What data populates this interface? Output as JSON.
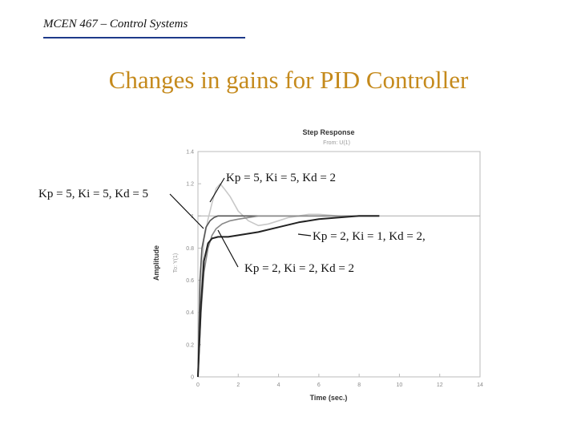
{
  "header": {
    "course": "MCEN 467 – Control Systems"
  },
  "slide": {
    "title": "Changes in gains for PID Controller"
  },
  "chart_data": {
    "type": "line",
    "title": "Step Response",
    "subtitle": "From: U(1)",
    "xlabel": "Time (sec.)",
    "ylabel": "Amplitude",
    "ylabel2": "To: Y(1)",
    "xlim": [
      0,
      14
    ],
    "ylim": [
      0,
      1.4
    ],
    "x_ticks": [
      "0",
      "2",
      "4",
      "6",
      "8",
      "10",
      "12",
      "14"
    ],
    "y_ticks": [
      "0",
      "0.2",
      "0.4",
      "0.6",
      "0.8",
      "1",
      "1.2",
      "1.4"
    ],
    "reference_value": 1.0,
    "series": [
      {
        "name": "Kp = 5, Ki = 5, Kd = 2",
        "color": "#c8c8c8",
        "x": [
          0,
          0.15,
          0.3,
          0.5,
          0.7,
          0.9,
          1.1,
          1.3,
          1.6,
          2.0,
          2.5,
          3.0,
          3.5,
          4.0,
          4.5,
          5.0,
          5.5,
          6.0,
          7.0,
          8.0,
          9.0
        ],
        "y": [
          0,
          0.55,
          0.85,
          0.98,
          1.08,
          1.17,
          1.2,
          1.17,
          1.12,
          1.03,
          0.97,
          0.94,
          0.95,
          0.97,
          0.99,
          1.0,
          1.01,
          1.01,
          1.0,
          1.0,
          1.0
        ]
      },
      {
        "name": "Kp = 5, Ki = 5, Kd = 5",
        "color": "#555555",
        "x": [
          0,
          0.1,
          0.2,
          0.4,
          0.6,
          0.8,
          1.0,
          1.5,
          2.0,
          3.0,
          4.0,
          6.0,
          9.0
        ],
        "y": [
          0,
          0.6,
          0.8,
          0.93,
          0.97,
          0.99,
          1.0,
          1.0,
          1.0,
          1.0,
          1.0,
          1.0,
          1.0
        ]
      },
      {
        "name": "Kp = 2, Ki = 2, Kd = 2",
        "color": "#888888",
        "x": [
          0,
          0.15,
          0.3,
          0.5,
          0.7,
          0.9,
          1.2,
          1.6,
          2.0,
          2.5,
          3.0,
          4.0,
          5.0,
          6.0,
          9.0
        ],
        "y": [
          0,
          0.4,
          0.65,
          0.8,
          0.88,
          0.92,
          0.95,
          0.97,
          0.98,
          0.99,
          1.0,
          1.0,
          1.0,
          1.0,
          1.0
        ]
      },
      {
        "name": "Kp = 2, Ki = 1, Kd = 2,",
        "color": "#222222",
        "x": [
          0,
          0.15,
          0.3,
          0.5,
          0.7,
          1.0,
          1.5,
          2.0,
          3.0,
          4.0,
          5.0,
          6.0,
          7.0,
          8.0,
          9.0
        ],
        "y": [
          0,
          0.45,
          0.72,
          0.83,
          0.86,
          0.87,
          0.87,
          0.88,
          0.9,
          0.93,
          0.96,
          0.98,
          0.99,
          1.0,
          1.0
        ]
      }
    ]
  }
}
